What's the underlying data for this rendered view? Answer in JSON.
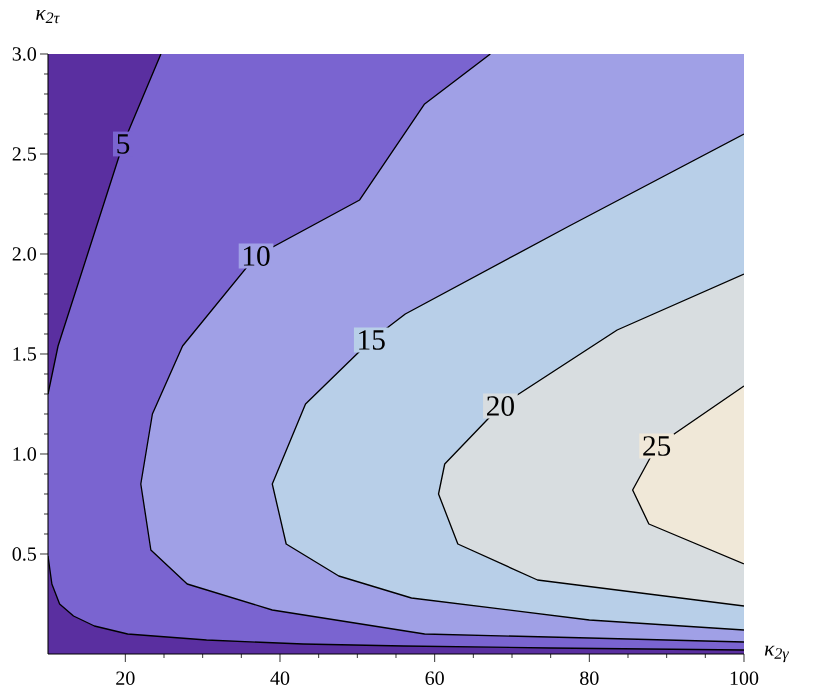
{
  "chart_data": {
    "type": "area",
    "xlabel": "κ$_{2γ}$",
    "ylabel": "κ$_{2τ}$",
    "xlim": [
      10,
      100
    ],
    "ylim": [
      0,
      3
    ],
    "xticks": [
      20,
      40,
      60,
      80,
      100
    ],
    "yticks": [
      {
        "value": 0.5,
        "label": "0.5"
      },
      {
        "value": 1,
        "label": "1.0"
      },
      {
        "value": 1.5,
        "label": "1.5"
      },
      {
        "value": 2,
        "label": "2.0"
      },
      {
        "value": 2.5,
        "label": "2.5"
      },
      {
        "value": 3,
        "label": "3.0"
      }
    ],
    "line_style": "solid",
    "series": [
      {
        "color": "#5a2fa0",
        "line_style": "none",
        "x": [
          100,
          10,
          10,
          100
        ],
        "values": [
          0,
          0,
          3,
          3
        ]
      },
      {
        "color": "#7a64d0",
        "x": [
          100,
          null,
          24.6,
          19.7,
          11.3,
          10,
          null,
          10,
          10.5,
          11.5,
          13.3,
          16,
          20.3,
          30.5,
          43,
          56,
          75,
          100
        ],
        "values": [
          3,
          null,
          3,
          2.55,
          1.54,
          1.3,
          null,
          0.49,
          0.35,
          0.25,
          0.19,
          0.14,
          0.1,
          0.07,
          0.05,
          0.04,
          0.03,
          0.02
        ]
      },
      {
        "color": "#a0a0e6",
        "x": [
          100,
          null,
          67.2,
          58.7,
          50.3,
          36.9,
          27.4,
          23.5,
          22,
          23.3,
          28,
          39,
          58.7,
          80,
          100
        ],
        "values": [
          3,
          null,
          3,
          2.75,
          2.27,
          1.99,
          1.54,
          1.2,
          0.85,
          0.52,
          0.35,
          0.22,
          0.1,
          0.08,
          0.06
        ]
      },
      {
        "color": "#b8cfe8",
        "x": [
          100,
          null,
          100,
          77.4,
          56.2,
          51.8,
          43.3,
          39,
          40.8,
          47.6,
          57,
          80,
          100
        ],
        "values": [
          3,
          null,
          2.6,
          2.14,
          1.7,
          1.57,
          1.25,
          0.85,
          0.55,
          0.39,
          0.28,
          0.17,
          0.12
        ]
      },
      {
        "color": "#d8dde0",
        "x": [
          100,
          null,
          100,
          83.6,
          68.5,
          61.3,
          60.5,
          63,
          73.3,
          100
        ],
        "values": [
          3,
          null,
          1.9,
          1.62,
          1.24,
          0.95,
          0.8,
          0.55,
          0.37,
          0.24
        ]
      },
      {
        "color": "#f0e8d8",
        "x": [
          100,
          null,
          100,
          88.7,
          85.6,
          87.7,
          100
        ],
        "values": [
          3,
          null,
          1.34,
          1.04,
          0.82,
          0.65,
          0.45
        ]
      }
    ],
    "annotations": [
      {
        "text": "5",
        "x": 19.7,
        "y": 2.55
      },
      {
        "text": "10",
        "x": 36.9,
        "y": 1.99
      },
      {
        "text": "15",
        "x": 51.8,
        "y": 1.57
      },
      {
        "text": "20",
        "x": 68.5,
        "y": 1.24
      },
      {
        "text": "25",
        "x": 88.7,
        "y": 1.04
      }
    ]
  }
}
